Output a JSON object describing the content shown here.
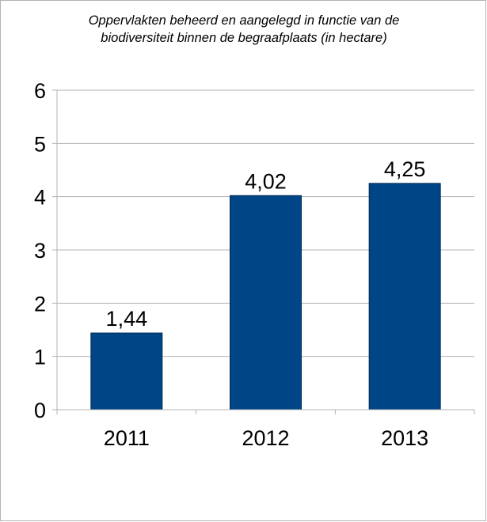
{
  "chart_data": {
    "type": "bar",
    "title_lines": [
      "Oppervlakten beheerd en aangelegd in functie van de",
      "biodiversiteit binnen de begraafplaats (in hectare)"
    ],
    "categories": [
      "2011",
      "2012",
      "2013"
    ],
    "values": [
      1.44,
      4.02,
      4.25
    ],
    "value_labels": [
      "1,44",
      "4,02",
      "4,25"
    ],
    "ylim": [
      0,
      6
    ],
    "yticks": [
      0,
      1,
      2,
      3,
      4,
      5,
      6
    ],
    "xlabel": "",
    "ylabel": "",
    "grid": "horizontal",
    "legend": "none",
    "bar_color": "#004586",
    "grid_color": "#b3b3b3"
  }
}
